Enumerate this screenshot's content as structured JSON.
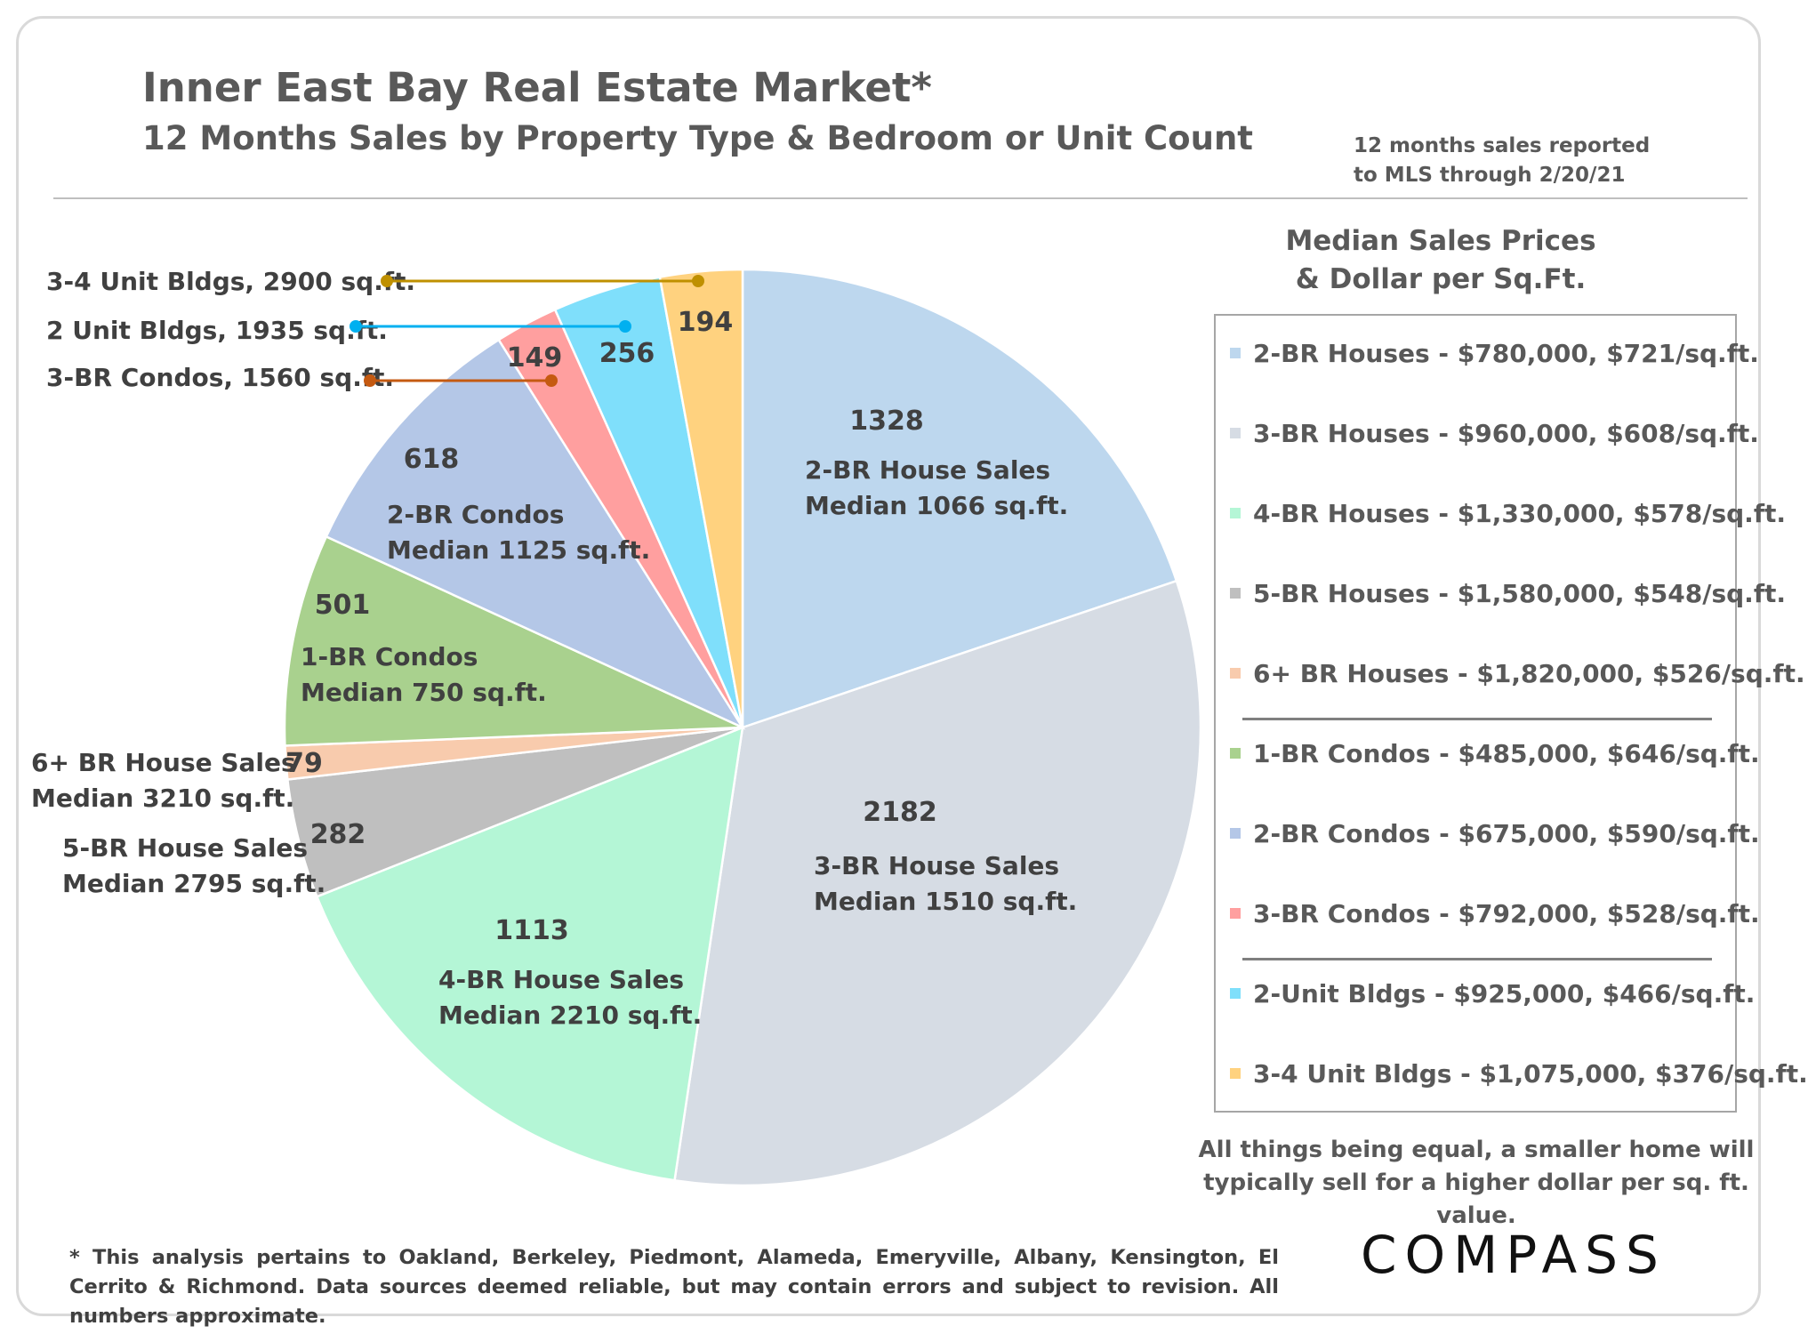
{
  "title": "Inner East Bay Real Estate Market*",
  "subtitle": "12 Months Sales by Property Type & Bedroom or Unit Count",
  "note": [
    "12 months sales reported",
    "to MLS through 2/20/21"
  ],
  "legend_title": [
    "Median Sales Prices",
    "& Dollar per Sq.Ft."
  ],
  "legend": [
    {
      "label": "2-BR Houses - $780,000, $721/sq.ft.",
      "color": "#bdd7ee"
    },
    {
      "label": "3-BR Houses - $960,000, $608/sq.ft.",
      "color": "#d6dce4"
    },
    {
      "label": "4-BR Houses - $1,330,000, $578/sq.ft.",
      "color": "#b4f6d6"
    },
    {
      "label": "5-BR Houses - $1,580,000, $548/sq.ft.",
      "color": "#bfbfbf"
    },
    {
      "label": "6+ BR Houses - $1,820,000, $526/sq.ft.",
      "color": "#f8cbad"
    },
    {
      "label": "1-BR Condos - $485,000, $646/sq.ft.",
      "color": "#a9d18e"
    },
    {
      "label": "2-BR Condos - $675,000, $590/sq.ft.",
      "color": "#b4c7e7"
    },
    {
      "label": "3-BR Condos - $792,000, $528/sq.ft.",
      "color": "#ff9f9f"
    },
    {
      "label": "2-Unit Bldgs - $925,000, $466/sq.ft.",
      "color": "#7fdffb"
    },
    {
      "label": "3-4 Unit Bldgs - $1,075,000, $376/sq.ft.",
      "color": "#ffd27f"
    }
  ],
  "tip": [
    "All things being equal, a smaller home will",
    "typically sell for a higher dollar per sq. ft. value."
  ],
  "footnote": "* This analysis pertains to Oakland, Berkeley, Piedmont, Alameda, Emeryville, Albany, Kensington, El Cerrito & Richmond. Data sources deemed reliable, but may contain errors and subject to revision. All numbers approximate.",
  "logo": "COMPASS",
  "chart_data": {
    "type": "pie",
    "slices": [
      {
        "value": 1328,
        "label": [
          "2-BR House Sales",
          "Median 1066 sq.ft."
        ],
        "color": "#bdd7ee"
      },
      {
        "value": 2182,
        "label": [
          "3-BR House Sales",
          "Median 1510 sq.ft."
        ],
        "color": "#d6dce4"
      },
      {
        "value": 1113,
        "label": [
          "4-BR House Sales",
          "Median 2210 sq.ft."
        ],
        "color": "#b4f6d6"
      },
      {
        "value": 282,
        "label": [
          "5-BR House Sales",
          "Median 2795 sq.ft."
        ],
        "color": "#bfbfbf"
      },
      {
        "value": 79,
        "label": [
          "6+ BR House Sales",
          "Median 3210 sq.ft."
        ],
        "color": "#f8cbad"
      },
      {
        "value": 501,
        "label": [
          "1-BR Condos",
          "Median 750 sq.ft."
        ],
        "color": "#a9d18e"
      },
      {
        "value": 618,
        "label": [
          "2-BR Condos",
          "Median 1125 sq.ft."
        ],
        "color": "#b4c7e7"
      },
      {
        "value": 149,
        "label": [
          "3-BR Condos, 1560 sq.ft."
        ],
        "color": "#ff9f9f",
        "leader_color": "#c55a11"
      },
      {
        "value": 256,
        "label": [
          "2 Unit Bldgs, 1935 sq.ft."
        ],
        "color": "#7fdffb",
        "leader_color": "#00b0f0"
      },
      {
        "value": 194,
        "label": [
          "3-4 Unit Bldgs, 2900 sq.ft."
        ],
        "color": "#ffd27f",
        "leader_color": "#bf9000"
      }
    ]
  }
}
